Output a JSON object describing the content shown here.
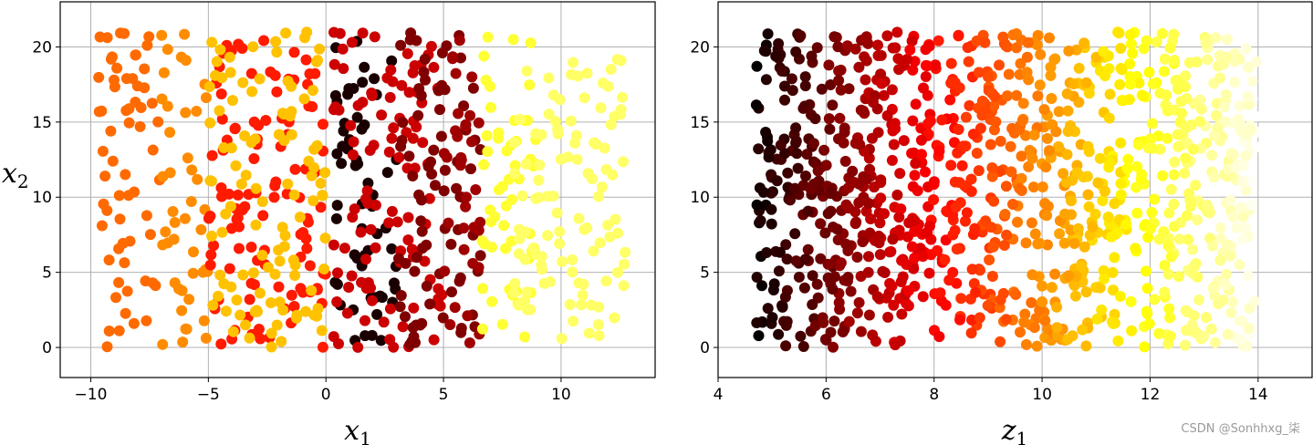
{
  "chart_data": [
    {
      "type": "scatter",
      "xlabel": "x",
      "xlabel_sub": "1",
      "ylabel": "x",
      "ylabel_sub": "2",
      "xlim": [
        -11.3,
        14.0
      ],
      "ylim": [
        -2.0,
        23.0
      ],
      "xticks": [
        -10,
        -5,
        0,
        5,
        10
      ],
      "xtick_labels": [
        "−10",
        "−5",
        "0",
        "5",
        "10"
      ],
      "yticks": [
        0,
        5,
        10,
        15,
        20
      ],
      "ytick_labels": [
        "0",
        "5",
        "10",
        "15",
        "20"
      ],
      "grid": true,
      "colormap": "hot",
      "bands": [
        {
          "x": [
            -9.8,
            -7.0
          ],
          "color": "#ff6a00"
        },
        {
          "x": [
            -7.0,
            -5.0
          ],
          "color": "#ff8c00"
        },
        {
          "x": [
            -5.0,
            0.0
          ],
          "color": "#ff1a00"
        },
        {
          "x": [
            -5.0,
            0.0
          ],
          "color": "#ffc200"
        },
        {
          "x": [
            0.3,
            3.0
          ],
          "color": "#1a0000"
        },
        {
          "x": [
            0.3,
            5.0
          ],
          "color": "#cc0000"
        },
        {
          "x": [
            3.0,
            6.6
          ],
          "color": "#800000"
        },
        {
          "x": [
            5.0,
            6.6
          ],
          "color": "#a00000"
        },
        {
          "x": [
            6.6,
            9.0
          ],
          "color": "#ffff33"
        },
        {
          "x": [
            8.0,
            12.8
          ],
          "color": "#ffff66"
        }
      ]
    },
    {
      "type": "scatter",
      "xlabel": "z",
      "xlabel_sub": "1",
      "ylabel": "",
      "xlim": [
        4.0,
        15.0
      ],
      "ylim": [
        -2.0,
        23.0
      ],
      "xticks": [
        4,
        6,
        8,
        10,
        12,
        14
      ],
      "xtick_labels": [
        "4",
        "6",
        "8",
        "10",
        "12",
        "14"
      ],
      "yticks": [
        0,
        5,
        10,
        15,
        20
      ],
      "ytick_labels": [
        "0",
        "5",
        "10",
        "15",
        "20"
      ],
      "grid": true,
      "colormap": "hot",
      "x_range": [
        4.7,
        14.0
      ],
      "y_range": [
        0.0,
        21.0
      ],
      "color_by": "x"
    }
  ],
  "watermark": "CSDN @Sonhhxg_柒"
}
